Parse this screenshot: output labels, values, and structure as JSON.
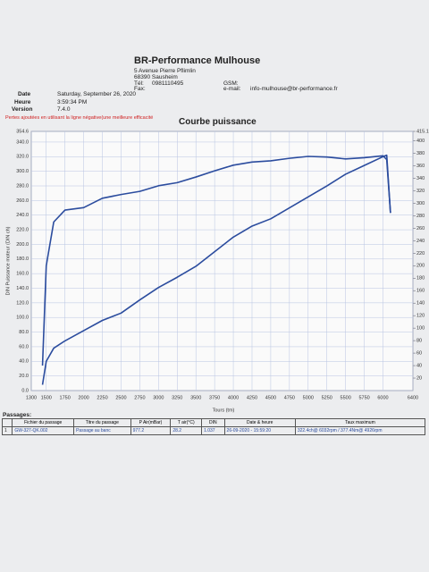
{
  "header": {
    "company": "BR-Performance Mulhouse",
    "address": [
      "5 Avenue Pierre Pflimlin",
      "68390 Sausheim"
    ],
    "tel_label": "Tél:",
    "tel": "0981110495",
    "gsm_label": "GSM:",
    "fax_label": "Fax:",
    "email_label": "e-mail:",
    "email": "info-mulhouse@br-performance.fr",
    "meta": [
      {
        "label": "Date",
        "value": "Saturday, September 26, 2020"
      },
      {
        "label": "Heure",
        "value": "3:59:34 PM"
      },
      {
        "label": "Version",
        "value": "7.4.0"
      }
    ]
  },
  "note": "Pertes ajoutées en utilisant la ligne négative(une meilleure efficacité",
  "chart_data": {
    "type": "line",
    "title": "Courbe puissance",
    "x_label": "Tours (tm)",
    "y_label": "DIN Puissance moteur (DIN ch)",
    "grid": true,
    "x": [
      1450,
      1500,
      1600,
      1750,
      2000,
      2250,
      2500,
      2750,
      3000,
      3250,
      3500,
      3750,
      4000,
      4250,
      4500,
      4750,
      5000,
      5250,
      5500,
      5750,
      6000,
      6050,
      6100
    ],
    "xlim": [
      1300,
      6400
    ],
    "xticks": [
      1300,
      1500,
      1750,
      2000,
      2250,
      2500,
      2750,
      3000,
      3250,
      3500,
      3750,
      4000,
      4250,
      4500,
      4750,
      5000,
      5250,
      5500,
      5750,
      6000,
      6400
    ],
    "ylim": [
      0,
      354.6
    ],
    "yticks": [
      {
        "value": 0,
        "label": "0.0"
      },
      {
        "value": 20,
        "label": "20.0"
      },
      {
        "value": 40,
        "label": "40.0"
      },
      {
        "value": 60,
        "label": "60.0"
      },
      {
        "value": 80,
        "label": "80.0"
      },
      {
        "value": 100,
        "label": "100.0"
      },
      {
        "value": 120,
        "label": "120.0"
      },
      {
        "value": 140,
        "label": "140.0"
      },
      {
        "value": 160,
        "label": "160.0"
      },
      {
        "value": 180,
        "label": "180.0"
      },
      {
        "value": 200,
        "label": "200.0"
      },
      {
        "value": 220,
        "label": "220.0"
      },
      {
        "value": 240,
        "label": "240.0"
      },
      {
        "value": 260,
        "label": "260.0"
      },
      {
        "value": 280,
        "label": "280.0"
      },
      {
        "value": 300,
        "label": "300.0"
      },
      {
        "value": 320,
        "label": "320.0"
      },
      {
        "value": 340,
        "label": "340.0"
      },
      354.6
    ],
    "y2lim": [
      0,
      415.1
    ],
    "y2ticks": [
      20,
      40,
      60,
      80,
      100,
      120,
      140,
      160,
      180,
      200,
      220,
      240,
      260,
      280,
      300,
      320,
      340,
      360,
      380,
      400,
      415.1
    ],
    "series": [
      {
        "color": "#2b4c9e",
        "values": [
          8,
          40,
          58,
          68,
          82,
          96,
          106,
          124,
          141,
          155,
          170,
          190,
          210,
          225,
          235,
          250,
          265,
          280,
          296,
          308,
          320,
          322,
          243
        ]
      },
      {
        "color": "#2b4c9e",
        "axis": "y2",
        "values": [
          40,
          200,
          270,
          289,
          293,
          308,
          314,
          319,
          328,
          333,
          342,
          352,
          361,
          366,
          368,
          372,
          375,
          374,
          371,
          373,
          376,
          370,
          285
        ]
      }
    ]
  },
  "table": {
    "title": "Passages:",
    "columns": [
      "Fichier du passage",
      "Titre du passage",
      "P Air(mBar)",
      "T air(°C)",
      "DIN",
      "Date & heure",
      "Taux maximum"
    ],
    "rows": [
      [
        "1",
        "GW-327-QK.002",
        "Passage au banc",
        "977.2",
        "28.2",
        "1.037",
        "26-09-2020 - 15:59:20",
        "322.4ch@ 6032rpm / 377.4Nm@ 4926rpm"
      ]
    ]
  }
}
